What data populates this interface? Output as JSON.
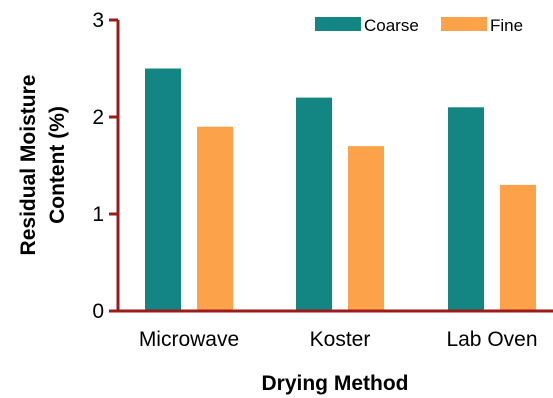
{
  "chart_data": {
    "type": "bar",
    "categories": [
      "Microwave",
      "Koster",
      "Lab Oven"
    ],
    "series": [
      {
        "name": "Coarse",
        "values": [
          2.5,
          2.2,
          2.1
        ],
        "color": "#138582"
      },
      {
        "name": "Fine",
        "values": [
          1.9,
          1.7,
          1.3
        ],
        "color": "#FBA24A"
      }
    ],
    "xlabel": "Drying Method",
    "ylabel_lines": [
      "Residual Moisture",
      "Content (%)"
    ],
    "ylim": [
      0,
      3
    ],
    "yticks": [
      0,
      1,
      2,
      3
    ],
    "ytick_labels": [
      "0",
      "1",
      "2",
      "3"
    ],
    "axis_color": "#9B1B1B",
    "legend_position": "top-right",
    "grid": false
  }
}
